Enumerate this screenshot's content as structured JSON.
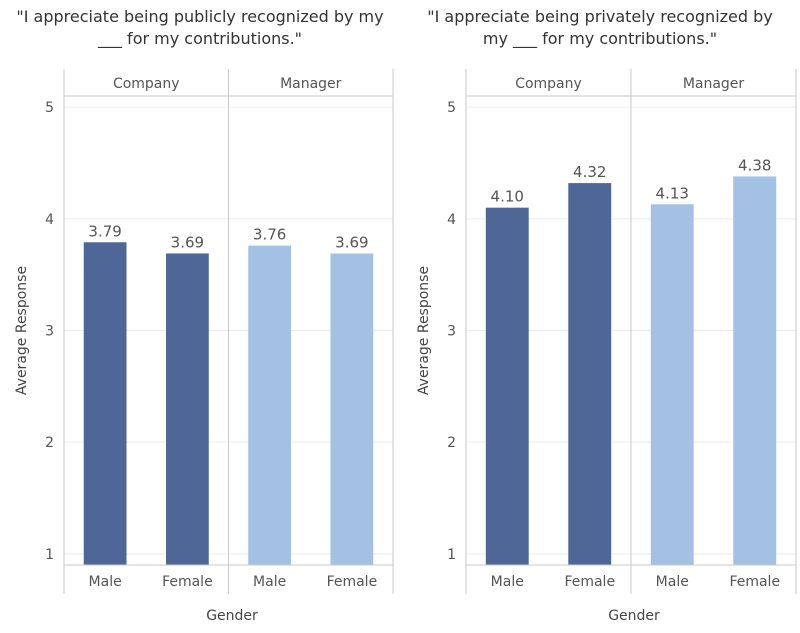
{
  "chart_data": [
    {
      "type": "bar",
      "title_line1": "\"I appreciate being publicly recognized by my",
      "title_line2": "___ for my contributions.\"",
      "xlabel": "Gender",
      "ylabel": "Average Response",
      "ylim": [
        0.9,
        5.1
      ],
      "yticks": [
        "1",
        "2",
        "3",
        "4",
        "5"
      ],
      "grid": true,
      "panels": [
        {
          "name": "Company",
          "categories": [
            "Male",
            "Female"
          ],
          "values": [
            3.79,
            3.69
          ],
          "labels": [
            "3.79",
            "3.69"
          ]
        },
        {
          "name": "Manager",
          "categories": [
            "Male",
            "Female"
          ],
          "values": [
            3.76,
            3.69
          ],
          "labels": [
            "3.76",
            "3.69"
          ]
        }
      ]
    },
    {
      "type": "bar",
      "title_line1": "\"I appreciate being privately recognized by",
      "title_line2": "my ___ for my contributions.\"",
      "xlabel": "Gender",
      "ylabel": "Average Response",
      "ylim": [
        0.9,
        5.1
      ],
      "yticks": [
        "1",
        "2",
        "3",
        "4",
        "5"
      ],
      "grid": true,
      "panels": [
        {
          "name": "Company",
          "categories": [
            "Male",
            "Female"
          ],
          "values": [
            4.1,
            4.32
          ],
          "labels": [
            "4.10",
            "4.32"
          ]
        },
        {
          "name": "Manager",
          "categories": [
            "Male",
            "Female"
          ],
          "values": [
            4.13,
            4.38
          ],
          "labels": [
            "4.13",
            "4.38"
          ]
        }
      ]
    }
  ],
  "colors": {
    "company": "#4e6796",
    "manager": "#a3c1e3",
    "axis": "#c9c9c9",
    "grid": "#ececec",
    "text": "#555555",
    "title": "#333333"
  }
}
